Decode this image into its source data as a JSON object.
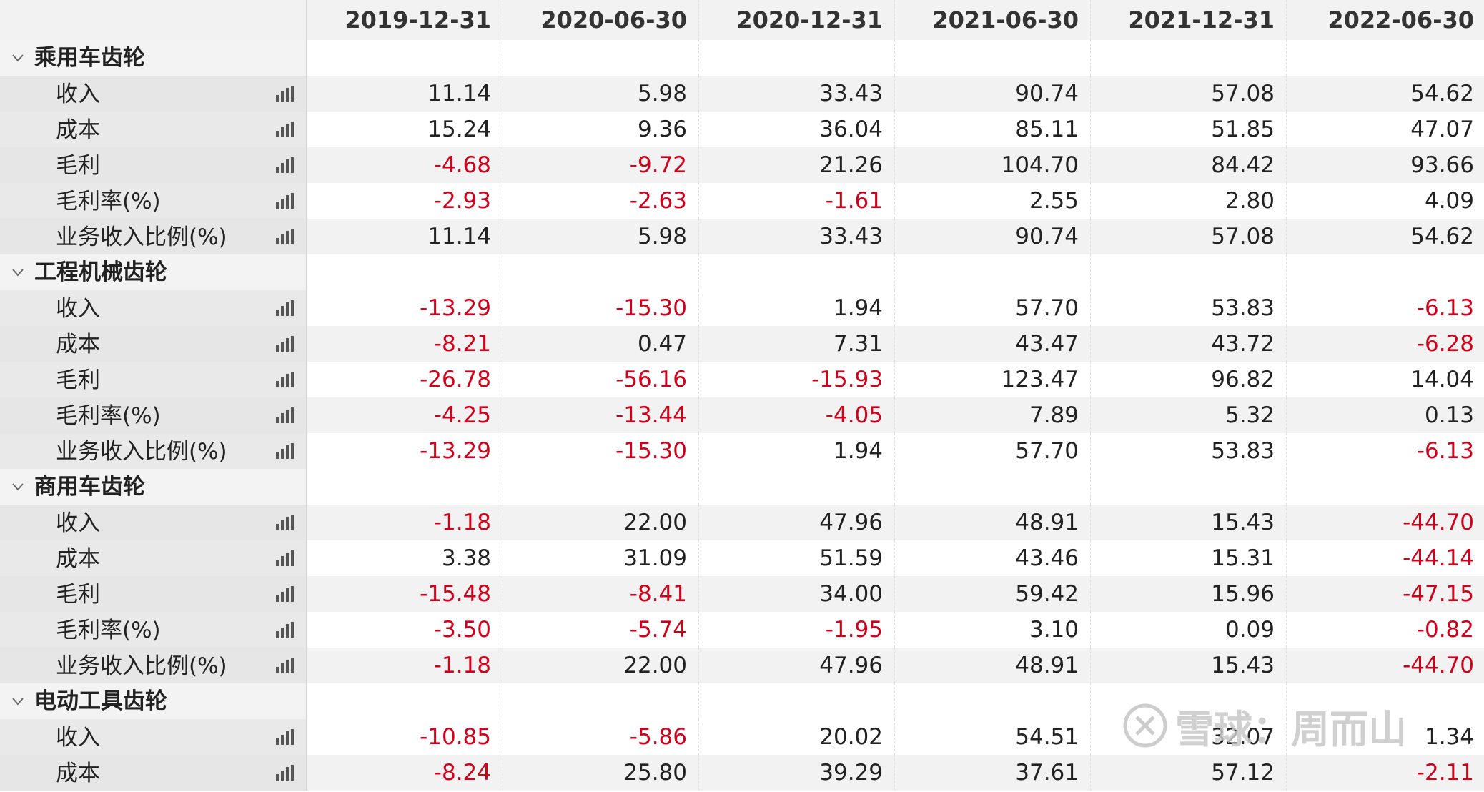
{
  "columns": [
    "2019-12-31",
    "2020-06-30",
    "2020-12-31",
    "2021-06-30",
    "2021-12-31",
    "2022-06-30"
  ],
  "groups": [
    {
      "title": "乘用车齿轮",
      "rows": [
        {
          "label": "收入",
          "values": [
            "11.14",
            "5.98",
            "33.43",
            "90.74",
            "57.08",
            "54.62"
          ]
        },
        {
          "label": "成本",
          "values": [
            "15.24",
            "9.36",
            "36.04",
            "85.11",
            "51.85",
            "47.07"
          ]
        },
        {
          "label": "毛利",
          "values": [
            "-4.68",
            "-9.72",
            "21.26",
            "104.70",
            "84.42",
            "93.66"
          ]
        },
        {
          "label": "毛利率(%)",
          "values": [
            "-2.93",
            "-2.63",
            "-1.61",
            "2.55",
            "2.80",
            "4.09"
          ]
        },
        {
          "label": "业务收入比例(%)",
          "values": [
            "11.14",
            "5.98",
            "33.43",
            "90.74",
            "57.08",
            "54.62"
          ]
        }
      ]
    },
    {
      "title": "工程机械齿轮",
      "rows": [
        {
          "label": "收入",
          "values": [
            "-13.29",
            "-15.30",
            "1.94",
            "57.70",
            "53.83",
            "-6.13"
          ]
        },
        {
          "label": "成本",
          "values": [
            "-8.21",
            "0.47",
            "7.31",
            "43.47",
            "43.72",
            "-6.28"
          ]
        },
        {
          "label": "毛利",
          "values": [
            "-26.78",
            "-56.16",
            "-15.93",
            "123.47",
            "96.82",
            "14.04"
          ]
        },
        {
          "label": "毛利率(%)",
          "values": [
            "-4.25",
            "-13.44",
            "-4.05",
            "7.89",
            "5.32",
            "0.13"
          ]
        },
        {
          "label": "业务收入比例(%)",
          "values": [
            "-13.29",
            "-15.30",
            "1.94",
            "57.70",
            "53.83",
            "-6.13"
          ]
        }
      ]
    },
    {
      "title": "商用车齿轮",
      "rows": [
        {
          "label": "收入",
          "values": [
            "-1.18",
            "22.00",
            "47.96",
            "48.91",
            "15.43",
            "-44.70"
          ]
        },
        {
          "label": "成本",
          "values": [
            "3.38",
            "31.09",
            "51.59",
            "43.46",
            "15.31",
            "-44.14"
          ]
        },
        {
          "label": "毛利",
          "values": [
            "-15.48",
            "-8.41",
            "34.00",
            "59.42",
            "15.96",
            "-47.15"
          ]
        },
        {
          "label": "毛利率(%)",
          "values": [
            "-3.50",
            "-5.74",
            "-1.95",
            "3.10",
            "0.09",
            "-0.82"
          ]
        },
        {
          "label": "业务收入比例(%)",
          "values": [
            "-1.18",
            "22.00",
            "47.96",
            "48.91",
            "15.43",
            "-44.70"
          ]
        }
      ]
    },
    {
      "title": "电动工具齿轮",
      "rows": [
        {
          "label": "收入",
          "values": [
            "-10.85",
            "-5.86",
            "20.02",
            "54.51",
            "32.07",
            "1.34"
          ]
        },
        {
          "label": "成本",
          "values": [
            "-8.24",
            "25.80",
            "39.29",
            "37.61",
            "57.12",
            "-2.11"
          ]
        }
      ]
    }
  ],
  "watermark": {
    "text": "雪球：周而山"
  },
  "colors": {
    "negative": "#d0021b",
    "positive": "#222222"
  }
}
